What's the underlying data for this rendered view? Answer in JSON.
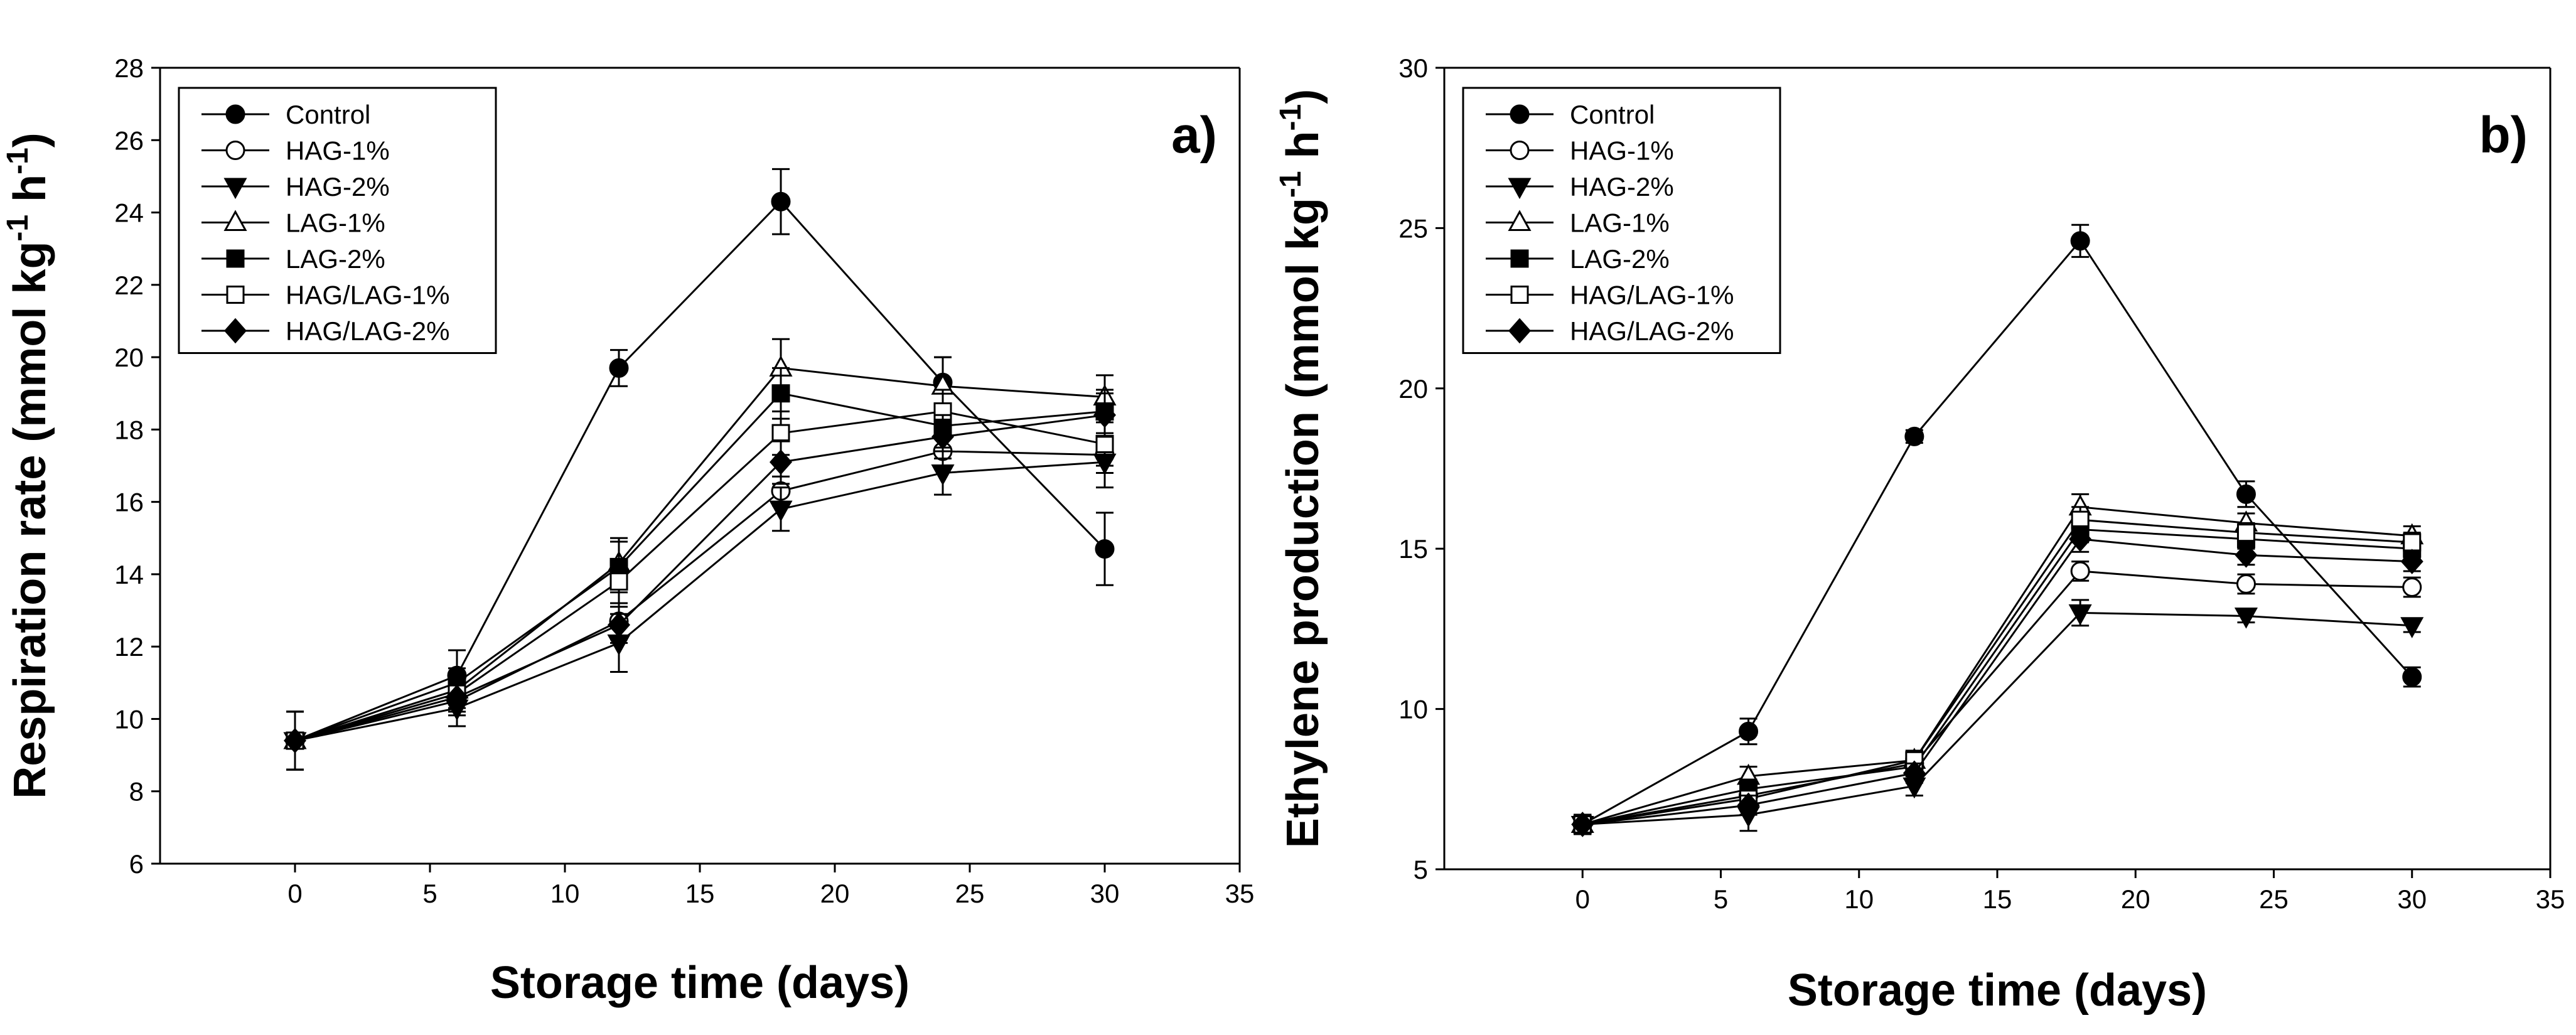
{
  "chart_data": [
    {
      "type": "line",
      "panel_label": "a)",
      "xlabel": "Storage time (days)",
      "ylabel_parts": [
        "Respiration rate (mmol kg",
        "-1",
        " h",
        "-1",
        ")"
      ],
      "xlim": [
        -5,
        35
      ],
      "ylim": [
        6,
        28
      ],
      "xticks": [
        0,
        5,
        10,
        15,
        20,
        25,
        30,
        35
      ],
      "yticks": [
        6,
        8,
        10,
        12,
        14,
        16,
        18,
        20,
        22,
        24,
        26,
        28
      ],
      "legend_position": "top-left",
      "grid": false,
      "x": [
        0,
        6,
        12,
        18,
        24,
        30
      ],
      "series": [
        {
          "name": "Control",
          "marker": "circle-filled",
          "values": [
            9.4,
            11.2,
            19.7,
            24.3,
            19.3,
            14.7
          ],
          "errors": [
            0.8,
            0.7,
            0.5,
            0.9,
            0.7,
            1.0
          ]
        },
        {
          "name": "HAG-1%",
          "marker": "circle-open",
          "values": [
            9.4,
            10.5,
            12.7,
            16.3,
            17.4,
            17.3
          ],
          "errors": [
            0.8,
            0.4,
            0.5,
            0.4,
            0.4,
            0.5
          ]
        },
        {
          "name": "HAG-2%",
          "marker": "triangle-down-filled",
          "values": [
            9.4,
            10.3,
            12.1,
            15.8,
            16.8,
            17.1
          ],
          "errors": [
            0.8,
            0.5,
            0.8,
            0.6,
            0.6,
            0.7
          ]
        },
        {
          "name": "LAG-1%",
          "marker": "triangle-up-open",
          "values": [
            9.4,
            10.8,
            14.3,
            19.7,
            19.2,
            18.9
          ],
          "errors": [
            0.8,
            0.4,
            0.7,
            0.8,
            0.8,
            0.6
          ]
        },
        {
          "name": "LAG-2%",
          "marker": "square-filled",
          "values": [
            9.4,
            11.0,
            14.2,
            19.0,
            18.1,
            18.5
          ],
          "errors": [
            0.8,
            0.4,
            0.7,
            0.7,
            0.6,
            0.6
          ]
        },
        {
          "name": "HAG/LAG-1%",
          "marker": "square-open",
          "values": [
            9.4,
            10.7,
            13.8,
            17.9,
            18.5,
            17.6
          ],
          "errors": [
            0.8,
            0.4,
            0.6,
            0.6,
            0.6,
            0.6
          ]
        },
        {
          "name": "HAG/LAG-2%",
          "marker": "diamond-filled",
          "values": [
            9.4,
            10.6,
            12.6,
            17.1,
            17.8,
            18.4
          ],
          "errors": [
            0.8,
            0.4,
            0.5,
            0.6,
            0.6,
            0.6
          ]
        }
      ]
    },
    {
      "type": "line",
      "panel_label": "b)",
      "xlabel": "Storage time (days)",
      "ylabel_parts": [
        "Ethylene production (mmol kg",
        "-1",
        " h",
        "-1",
        ")"
      ],
      "xlim": [
        -5,
        35
      ],
      "ylim": [
        5,
        30
      ],
      "xticks": [
        0,
        5,
        10,
        15,
        20,
        25,
        30,
        35
      ],
      "yticks": [
        5,
        10,
        15,
        20,
        25,
        30
      ],
      "legend_position": "top-left",
      "grid": false,
      "x": [
        0,
        6,
        12,
        18,
        24,
        30
      ],
      "series": [
        {
          "name": "Control",
          "marker": "circle-filled",
          "values": [
            6.4,
            9.3,
            18.5,
            24.6,
            16.7,
            11.0
          ],
          "errors": [
            0.3,
            0.4,
            0.2,
            0.5,
            0.4,
            0.3
          ]
        },
        {
          "name": "HAG-1%",
          "marker": "circle-open",
          "values": [
            6.4,
            7.3,
            8.3,
            14.3,
            13.9,
            13.8
          ],
          "errors": [
            0.3,
            0.3,
            0.3,
            0.3,
            0.3,
            0.3
          ]
        },
        {
          "name": "HAG-2%",
          "marker": "triangle-down-filled",
          "values": [
            6.4,
            6.7,
            7.6,
            13.0,
            12.9,
            12.6
          ],
          "errors": [
            0.3,
            0.5,
            0.3,
            0.4,
            0.2,
            0.2
          ]
        },
        {
          "name": "LAG-1%",
          "marker": "triangle-up-open",
          "values": [
            6.4,
            7.9,
            8.4,
            16.3,
            15.8,
            15.4
          ],
          "errors": [
            0.3,
            0.3,
            0.3,
            0.4,
            0.3,
            0.3
          ]
        },
        {
          "name": "LAG-2%",
          "marker": "square-filled",
          "values": [
            6.4,
            7.5,
            8.2,
            15.6,
            15.3,
            15.0
          ],
          "errors": [
            0.3,
            0.3,
            0.3,
            0.4,
            0.3,
            0.3
          ]
        },
        {
          "name": "HAG/LAG-1%",
          "marker": "square-open",
          "values": [
            6.4,
            7.2,
            8.4,
            15.9,
            15.5,
            15.2
          ],
          "errors": [
            0.3,
            0.3,
            0.3,
            0.4,
            0.3,
            0.3
          ]
        },
        {
          "name": "HAG/LAG-2%",
          "marker": "diamond-filled",
          "values": [
            6.4,
            7.0,
            8.0,
            15.3,
            14.8,
            14.6
          ],
          "errors": [
            0.3,
            0.3,
            0.3,
            0.4,
            0.3,
            0.3
          ]
        }
      ]
    }
  ]
}
